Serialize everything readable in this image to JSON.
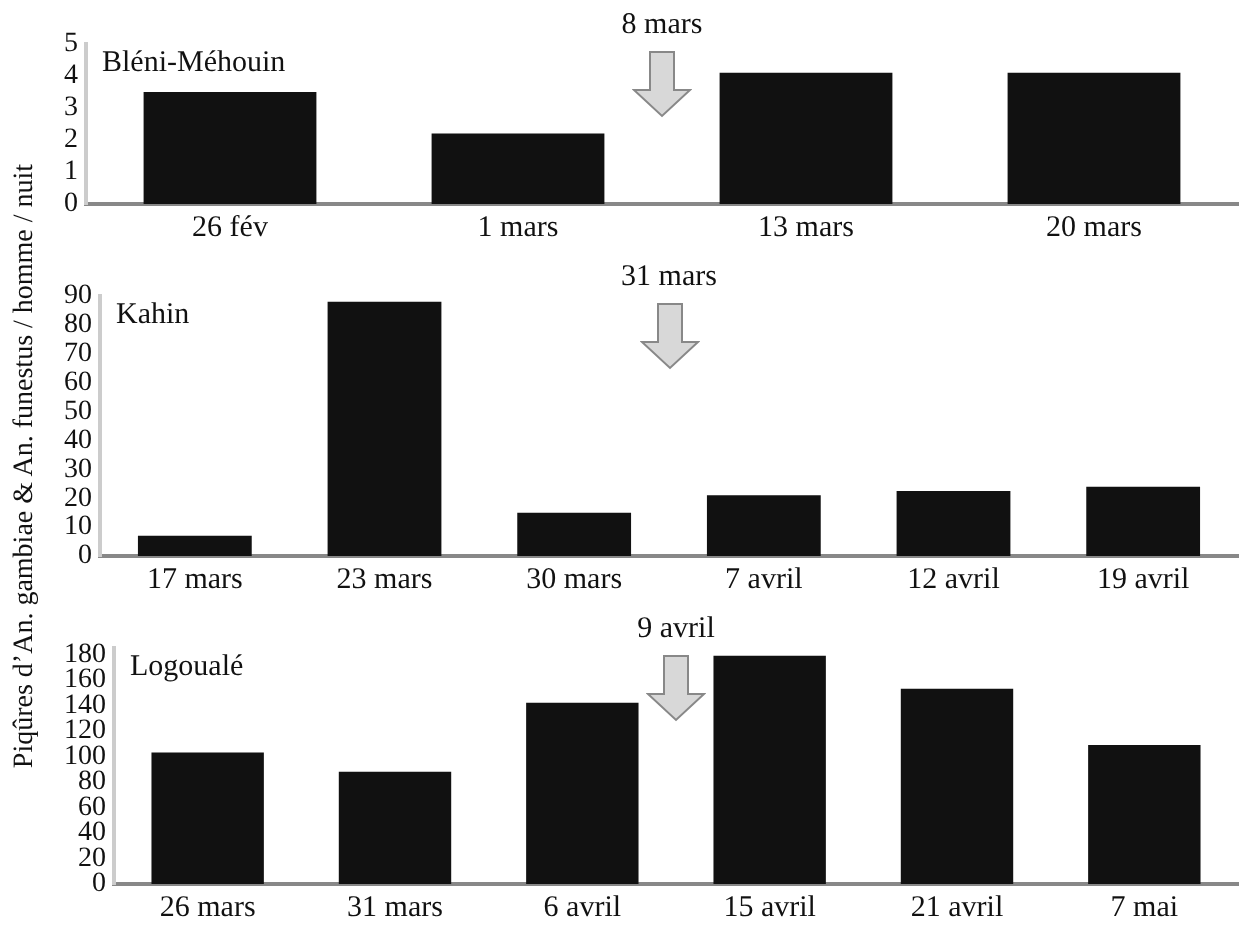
{
  "chart_data": [
    {
      "type": "bar",
      "title": "Bléni-Méhouin",
      "categories": [
        "26 fév",
        "1 mars",
        "13 mars",
        "20 mars"
      ],
      "values": [
        3.5,
        2.2,
        4.1,
        4.1
      ],
      "color": "#111111",
      "ylim": [
        0,
        5
      ],
      "yticks": [
        0,
        1,
        2,
        3,
        4,
        5
      ],
      "annotations": [
        "8 mars"
      ]
    },
    {
      "type": "bar",
      "title": "Kahin",
      "ylabel": "Piqûres d’An. gambiae & An. funestus / homme / nuit",
      "categories": [
        "17 mars",
        "23 mars",
        "30 mars",
        "7 avril",
        "12 avril",
        "19 avril"
      ],
      "values": [
        7,
        88,
        15,
        21,
        22.5,
        24
      ],
      "color": "#111111",
      "ylim": [
        0,
        90
      ],
      "yticks": [
        0,
        10,
        20,
        30,
        40,
        50,
        60,
        70,
        80,
        90
      ],
      "annotations": [
        "31 mars"
      ]
    },
    {
      "type": "bar",
      "title": "Logoualé",
      "categories": [
        "26 mars",
        "31 mars",
        "6 avril",
        "15 avril",
        "21 avril",
        "7 mai"
      ],
      "values": [
        103,
        88,
        142,
        179,
        153,
        109
      ],
      "color": "#111111",
      "ylim": [
        0,
        185
      ],
      "yticks": [
        0,
        20,
        40,
        60,
        80,
        100,
        120,
        140,
        160,
        180
      ],
      "annotations": [
        "9 avril"
      ]
    }
  ]
}
